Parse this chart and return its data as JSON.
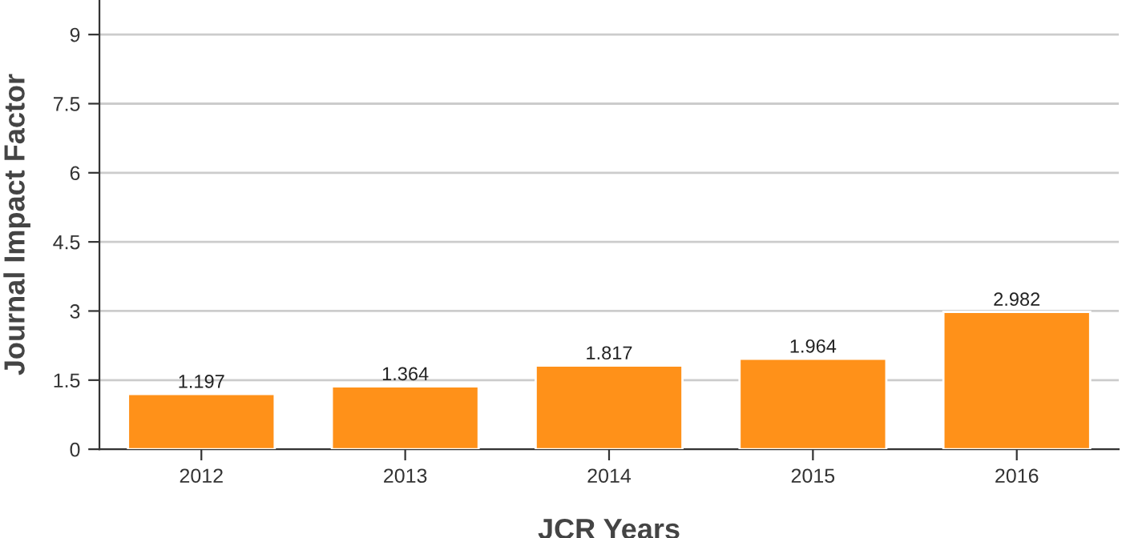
{
  "chart_data": {
    "type": "bar",
    "xlabel": "JCR Years",
    "ylabel": "Journal Impact Factor",
    "categories": [
      "2012",
      "2013",
      "2014",
      "2015",
      "2016"
    ],
    "values": [
      1.197,
      1.364,
      1.817,
      1.964,
      2.982
    ],
    "color": "#ff9119",
    "ylim": [
      0,
      9.75
    ],
    "yticks": [
      0,
      1.5,
      3,
      4.5,
      6,
      7.5,
      9
    ],
    "grid": "y",
    "data_labels": true
  }
}
